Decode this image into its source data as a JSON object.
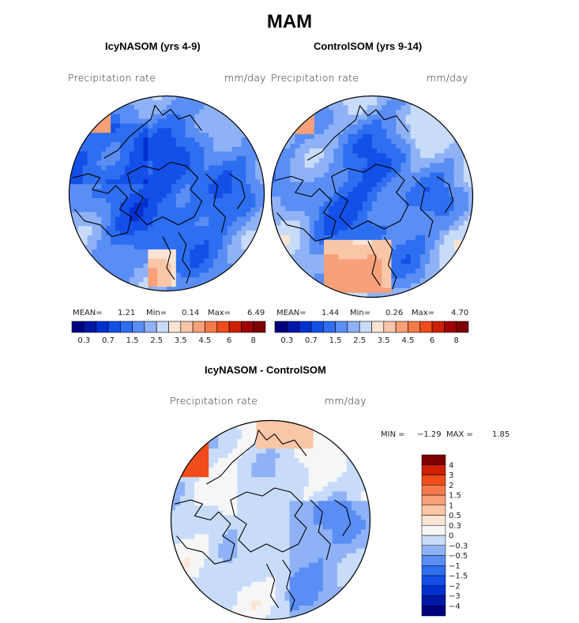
{
  "figure": {
    "title": "MAM"
  },
  "panels": [
    {
      "title": "IcyNASOM (yrs 4-9)",
      "variable": "Precipitation rate",
      "units": "mm/day",
      "stats": {
        "mean_label": "MEAN=",
        "mean": "1.21",
        "min_label": "Min=",
        "min": "0.14",
        "max_label": "Max=",
        "max": "6.49"
      }
    },
    {
      "title": "ControlSOM (yrs 9-14)",
      "variable": "Precipitation rate",
      "units": "mm/day",
      "stats": {
        "mean_label": "MEAN=",
        "mean": "1.44",
        "min_label": "Min=",
        "min": "0.26",
        "max_label": "Max=",
        "max": "4.70"
      }
    },
    {
      "title": "IcyNASOM - ControlSOM",
      "variable": "Precipitation rate",
      "units": "mm/day",
      "stats": {
        "min_label": "MIN =",
        "min": "−1.29",
        "max_label": "MAX =",
        "max": "1.85"
      }
    }
  ],
  "chart_data": [
    {
      "type": "heatmap",
      "projection": "north-polar-stereographic",
      "title": "IcyNASOM (yrs 4-9)",
      "variable": "Precipitation rate",
      "units": "mm/day",
      "colorbar": {
        "orientation": "horizontal",
        "levels": [
          0.3,
          0.5,
          0.7,
          1,
          1.5,
          2,
          2.5,
          3,
          3.5,
          4,
          4.5,
          5,
          6,
          7,
          8
        ],
        "tick_labels": [
          "0.3",
          "0.7",
          "1.5",
          "2.5",
          "3.5",
          "4.5",
          "6",
          "8"
        ],
        "colors": [
          "#00007f",
          "#0018a8",
          "#0030d0",
          "#1450e8",
          "#2e6ef0",
          "#5a8ef4",
          "#8fb2f6",
          "#c8dcfa",
          "#fbe4d4",
          "#f9c6a8",
          "#f7a07a",
          "#f57a4a",
          "#f04c1c",
          "#cc2000",
          "#a00000",
          "#7d0000"
        ]
      },
      "stats": {
        "mean": 1.21,
        "min": 0.14,
        "max": 6.49
      }
    },
    {
      "type": "heatmap",
      "projection": "north-polar-stereographic",
      "title": "ControlSOM (yrs 9-14)",
      "variable": "Precipitation rate",
      "units": "mm/day",
      "colorbar": {
        "orientation": "horizontal",
        "levels": [
          0.3,
          0.5,
          0.7,
          1,
          1.5,
          2,
          2.5,
          3,
          3.5,
          4,
          4.5,
          5,
          6,
          7,
          8
        ],
        "tick_labels": [
          "0.3",
          "0.7",
          "1.5",
          "2.5",
          "3.5",
          "4.5",
          "6",
          "8"
        ],
        "colors": [
          "#00007f",
          "#0018a8",
          "#0030d0",
          "#1450e8",
          "#2e6ef0",
          "#5a8ef4",
          "#8fb2f6",
          "#c8dcfa",
          "#fbe4d4",
          "#f9c6a8",
          "#f7a07a",
          "#f57a4a",
          "#f04c1c",
          "#cc2000",
          "#a00000",
          "#7d0000"
        ]
      },
      "stats": {
        "mean": 1.44,
        "min": 0.26,
        "max": 4.7
      }
    },
    {
      "type": "heatmap",
      "projection": "north-polar-stereographic",
      "title": "IcyNASOM - ControlSOM",
      "variable": "Precipitation rate",
      "units": "mm/day",
      "colorbar": {
        "orientation": "vertical",
        "levels": [
          -4,
          -3,
          -2,
          -1.5,
          -1,
          -0.5,
          -0.3,
          0,
          0.3,
          0.5,
          1,
          1.5,
          2,
          3,
          4
        ],
        "tick_labels": [
          "−4",
          "−3",
          "−2",
          "−1.5",
          "−1",
          "−0.5",
          "−0.3",
          "0",
          "0.3",
          "0.5",
          "1",
          "1.5",
          "2",
          "3",
          "4"
        ],
        "colors": [
          "#00007f",
          "#0018a8",
          "#0030d0",
          "#1450e8",
          "#2e6ef0",
          "#5a8ef4",
          "#8fb2f6",
          "#c8dcfa",
          "#f6f6f6",
          "#fbe4d4",
          "#f9c6a8",
          "#f7a07a",
          "#f57a4a",
          "#f04c1c",
          "#cc2000",
          "#7d0000"
        ]
      },
      "stats": {
        "min": -1.29,
        "max": 1.85
      }
    }
  ]
}
